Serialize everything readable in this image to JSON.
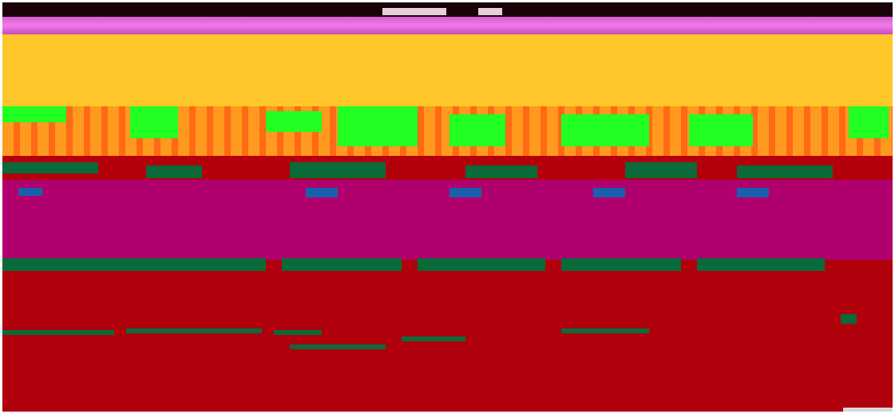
{
  "colors": {
    "top_bar": "#1a0308",
    "magenta": "#e06ad8",
    "yellow": "#ffc62a",
    "orange": "#ff8a1a",
    "green": "#22ff22",
    "dark_green": "#0a6a3a",
    "red": "#b0000c",
    "purple": "#b0006e",
    "blue": "#1a5fae"
  }
}
